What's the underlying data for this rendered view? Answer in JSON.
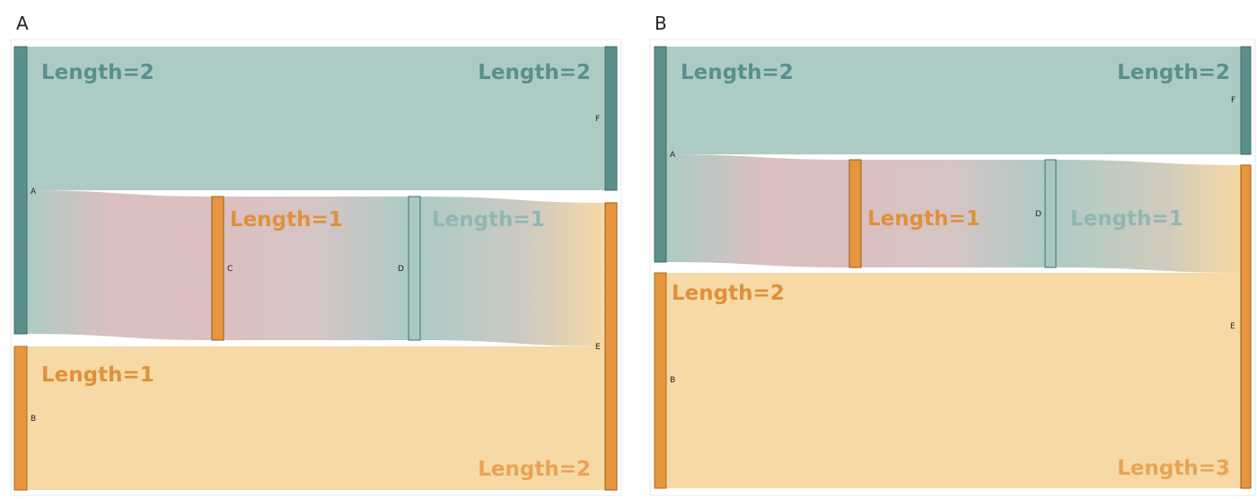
{
  "panels": [
    {
      "id": "A",
      "title": "A"
    },
    {
      "id": "B",
      "title": "B"
    }
  ],
  "colors": {
    "teal_node": "#5a8f8c",
    "teal_link": "#a9c8c2",
    "orange_node": "#e5963f",
    "orange_link": "#f6d7a0",
    "pink_mid": "#d9bcbc",
    "teal_text": "#5a8f8c",
    "orange_text": "#e0903a"
  },
  "chart_data": [
    {
      "type": "sankey",
      "panel": "A",
      "nodes": [
        "A",
        "B",
        "C",
        "D",
        "E",
        "F"
      ],
      "links": [
        {
          "source": "A",
          "target": "F",
          "value": 2,
          "label": "Length=2"
        },
        {
          "source": "A",
          "target": "C",
          "value": 1
        },
        {
          "source": "C",
          "target": "D",
          "value": 1,
          "label": "Length=1"
        },
        {
          "source": "D",
          "target": "E",
          "value": 1,
          "label": "Length=1"
        },
        {
          "source": "B",
          "target": "E",
          "value": 1,
          "label": "Length=1"
        }
      ],
      "annotations": [
        "Length=2",
        "Length=2",
        "Length=1",
        "Length=1",
        "Length=1",
        "Length=2"
      ]
    },
    {
      "type": "sankey",
      "panel": "B",
      "nodes": [
        "A",
        "B",
        "D",
        "E",
        "F"
      ],
      "links": [
        {
          "source": "A",
          "target": "F",
          "value": 1,
          "label": "Length=2"
        },
        {
          "source": "A",
          "target": "D",
          "value": 1,
          "label": "Length=1"
        },
        {
          "source": "D",
          "target": "E",
          "value": 1,
          "label": "Length=1"
        },
        {
          "source": "B",
          "target": "E",
          "value": 2,
          "label": "Length=2"
        }
      ],
      "annotations": [
        "Length=2",
        "Length=2",
        "Length=1",
        "Length=1",
        "Length=2",
        "Length=3"
      ]
    }
  ]
}
